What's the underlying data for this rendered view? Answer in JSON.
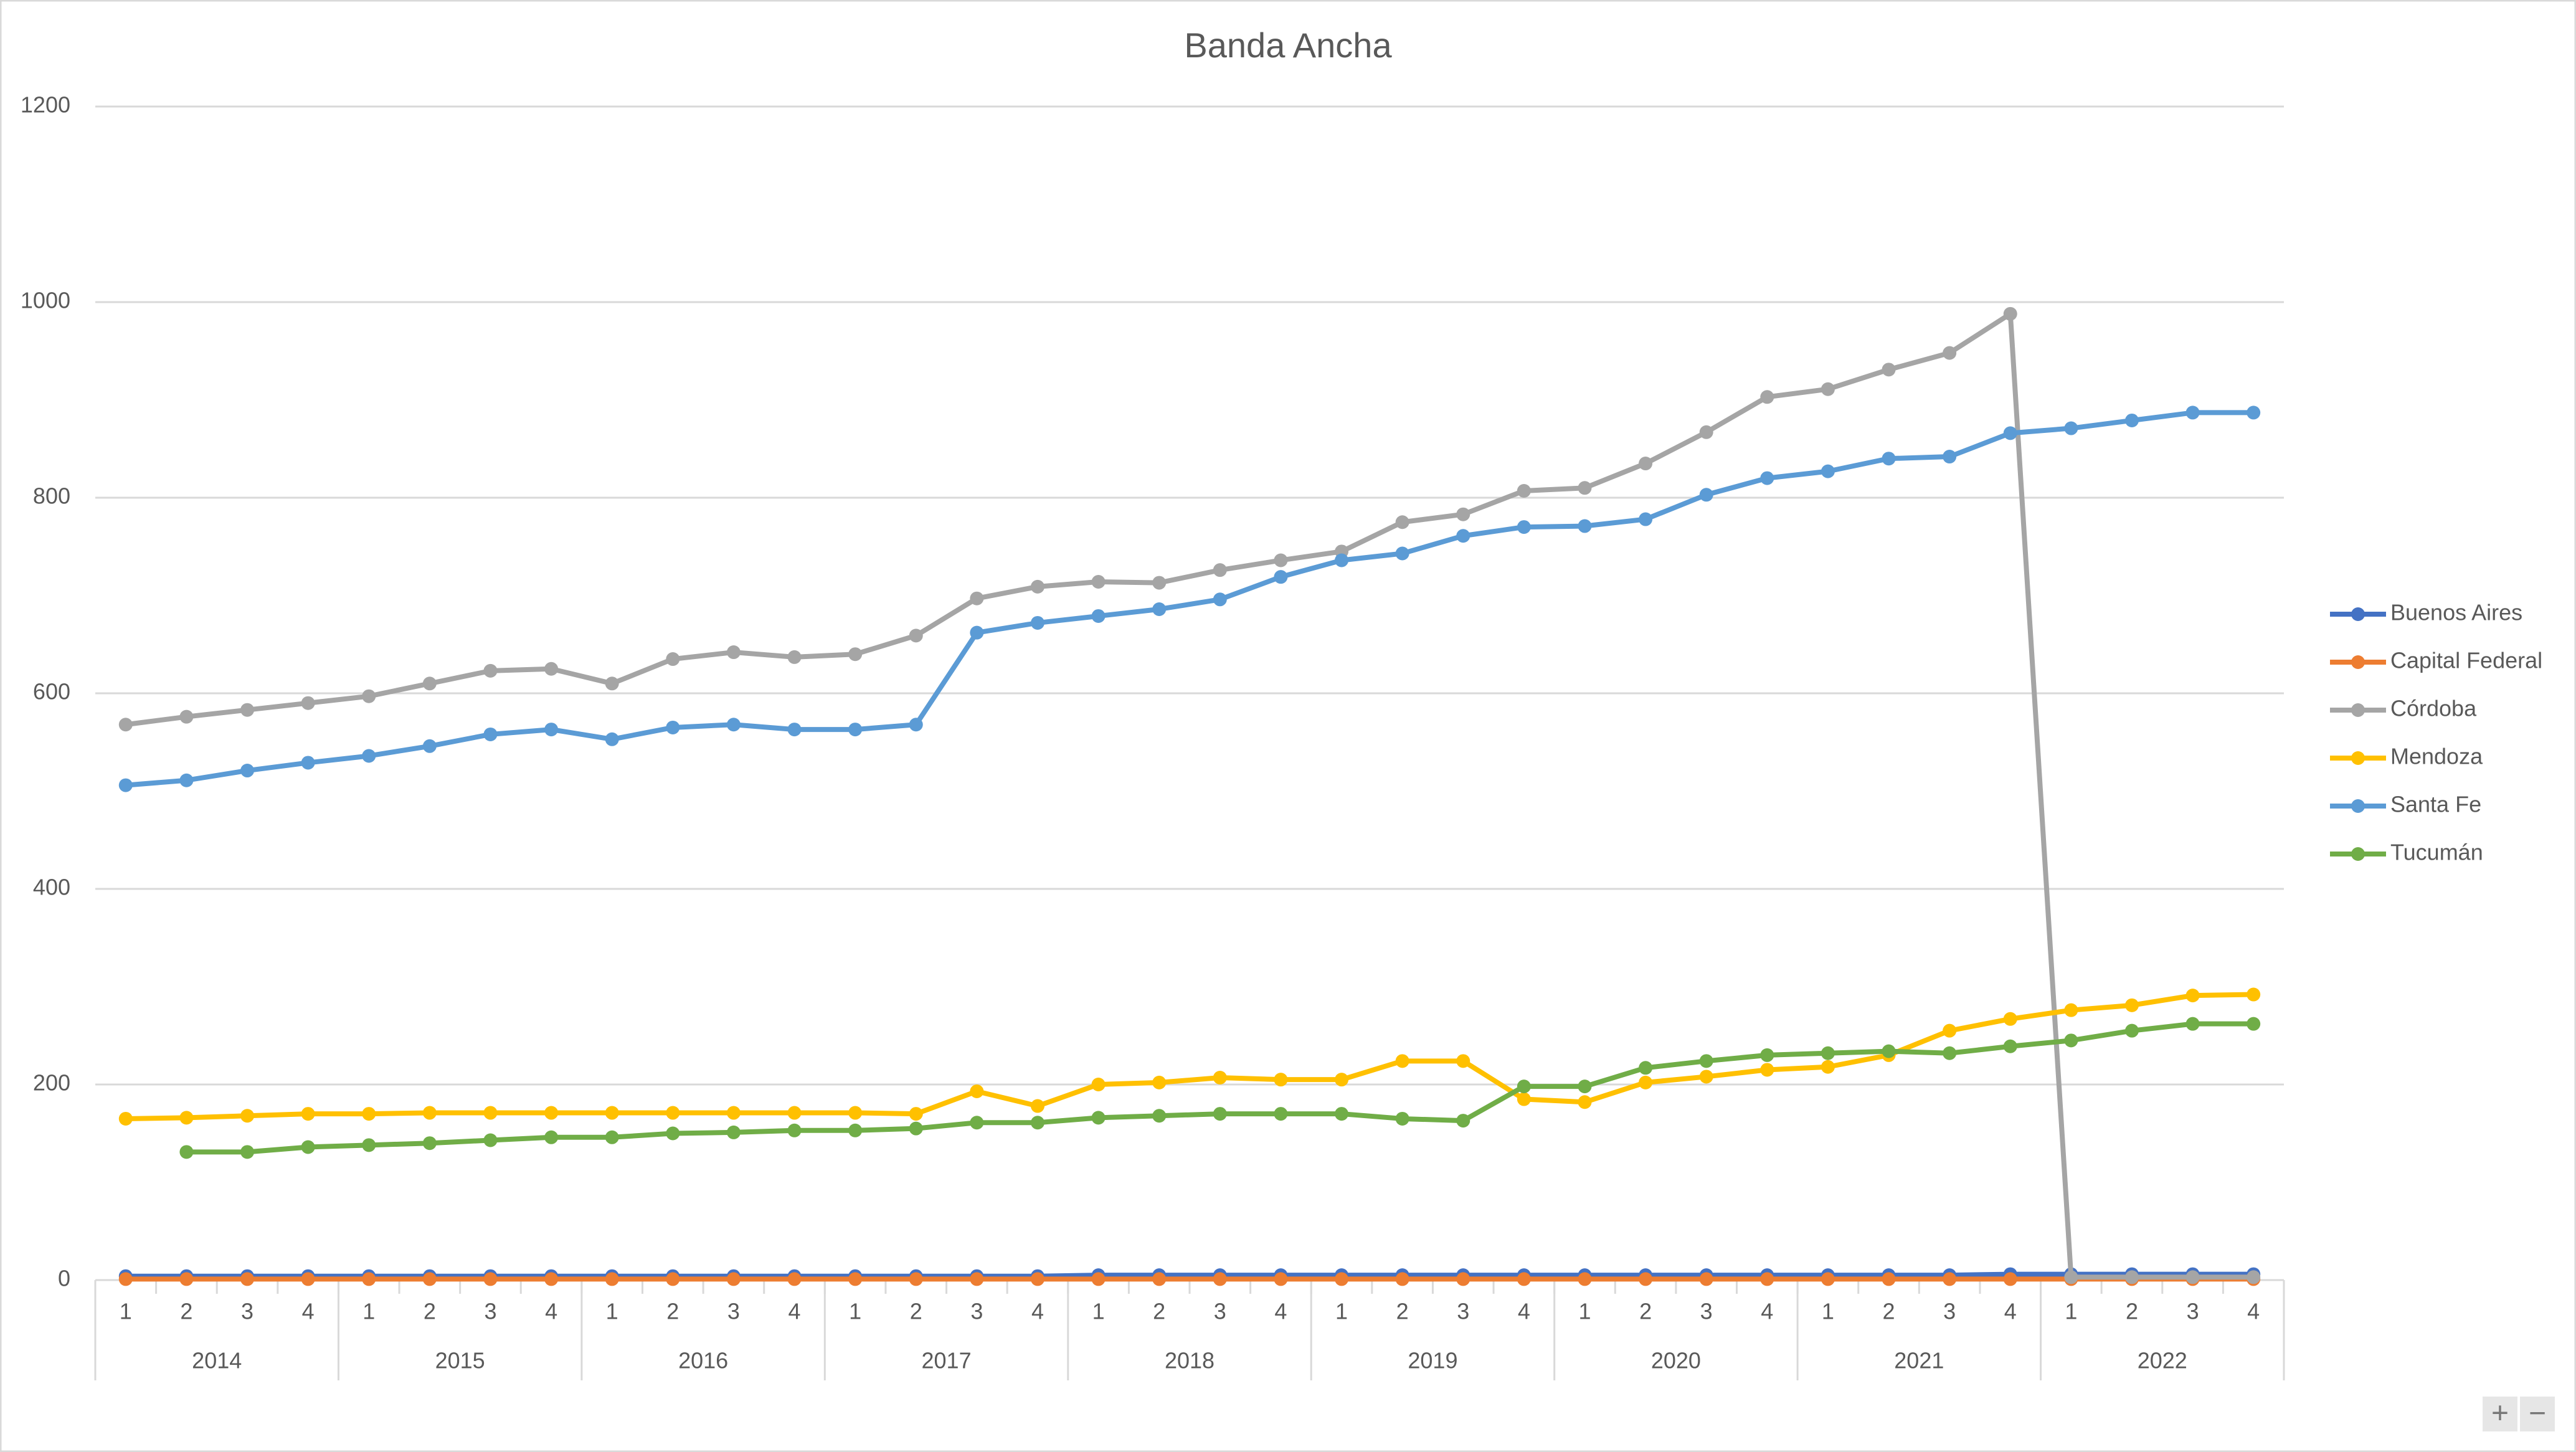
{
  "chart_data": {
    "type": "line",
    "title": "Banda Ancha",
    "categories": [
      "1",
      "2",
      "3",
      "4",
      "1",
      "2",
      "3",
      "4",
      "1",
      "2",
      "3",
      "4",
      "1",
      "2",
      "3",
      "4",
      "1",
      "2",
      "3",
      "4",
      "1",
      "2",
      "3",
      "4",
      "1",
      "2",
      "3",
      "4",
      "1",
      "2",
      "3",
      "4",
      "1",
      "2",
      "3",
      "4"
    ],
    "category_groups": [
      "2014",
      "2015",
      "2016",
      "2017",
      "2018",
      "2019",
      "2020",
      "2021",
      "2022"
    ],
    "ylim": [
      0,
      1200
    ],
    "yticks": [
      0,
      200,
      400,
      600,
      800,
      1000,
      1200
    ],
    "grid": true,
    "legend": "right",
    "series": [
      {
        "name": "Buenos Aires",
        "color": "#4472c4",
        "values": [
          4,
          4,
          4,
          4,
          4,
          4,
          4,
          4,
          4,
          4,
          4,
          4,
          4,
          4,
          4,
          4,
          5,
          5,
          5,
          5,
          5,
          5,
          5,
          5,
          5,
          5,
          5,
          5,
          5,
          5,
          5,
          6,
          6,
          6,
          6,
          6
        ]
      },
      {
        "name": "Capital Federal",
        "color": "#ed7d31",
        "values": [
          1,
          1,
          1,
          1,
          1,
          1,
          1,
          1,
          1,
          1,
          1,
          1,
          1,
          1,
          1,
          1,
          1,
          1,
          1,
          1,
          1,
          1,
          1,
          1,
          1,
          1,
          1,
          1,
          1,
          1,
          1,
          1,
          1,
          1,
          1,
          1
        ]
      },
      {
        "name": "Córdoba",
        "color": "#a5a5a5",
        "values": [
          568,
          576,
          583,
          590,
          597,
          610,
          623,
          625,
          610,
          635,
          642,
          637,
          640,
          659,
          697,
          709,
          714,
          713,
          726,
          736,
          745,
          775,
          783,
          807,
          810,
          835,
          867,
          903,
          911,
          931,
          948,
          988,
          3,
          3,
          3,
          3
        ]
      },
      {
        "name": "Mendoza",
        "color": "#ffc000",
        "values": [
          165,
          166,
          168,
          170,
          170,
          171,
          171,
          171,
          171,
          171,
          171,
          171,
          171,
          170,
          193,
          178,
          200,
          202,
          207,
          205,
          205,
          224,
          224,
          185,
          182,
          202,
          208,
          215,
          218,
          230,
          255,
          267,
          276,
          281,
          291,
          292
        ]
      },
      {
        "name": "Santa Fe",
        "color": "#5b9bd5",
        "values": [
          506,
          511,
          521,
          529,
          536,
          546,
          558,
          563,
          553,
          565,
          568,
          563,
          563,
          568,
          662,
          672,
          679,
          686,
          696,
          719,
          736,
          743,
          761,
          770,
          771,
          778,
          803,
          820,
          827,
          840,
          842,
          866,
          871,
          879,
          887,
          887
        ]
      },
      {
        "name": "Tucumán",
        "color": "#70ad47",
        "values": [
          null,
          131,
          131,
          136,
          138,
          140,
          143,
          146,
          146,
          150,
          151,
          153,
          153,
          155,
          161,
          161,
          166,
          168,
          170,
          170,
          170,
          165,
          163,
          198,
          198,
          217,
          224,
          230,
          232,
          234,
          232,
          239,
          245,
          255,
          262,
          262
        ]
      }
    ]
  },
  "zoom_controls": {
    "zoom_in": "+",
    "zoom_out": "−"
  }
}
